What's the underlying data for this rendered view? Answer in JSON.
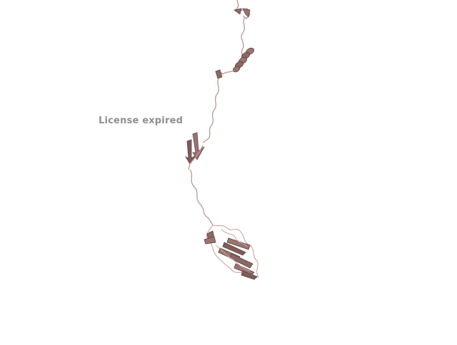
{
  "viewer": {
    "watermark": "License expired",
    "ribbon_color": "#9a7470",
    "ribbon_highlight": "#c9a7a2",
    "ribbon_shadow": "#5e4442",
    "coil_color": "#b89a96"
  }
}
